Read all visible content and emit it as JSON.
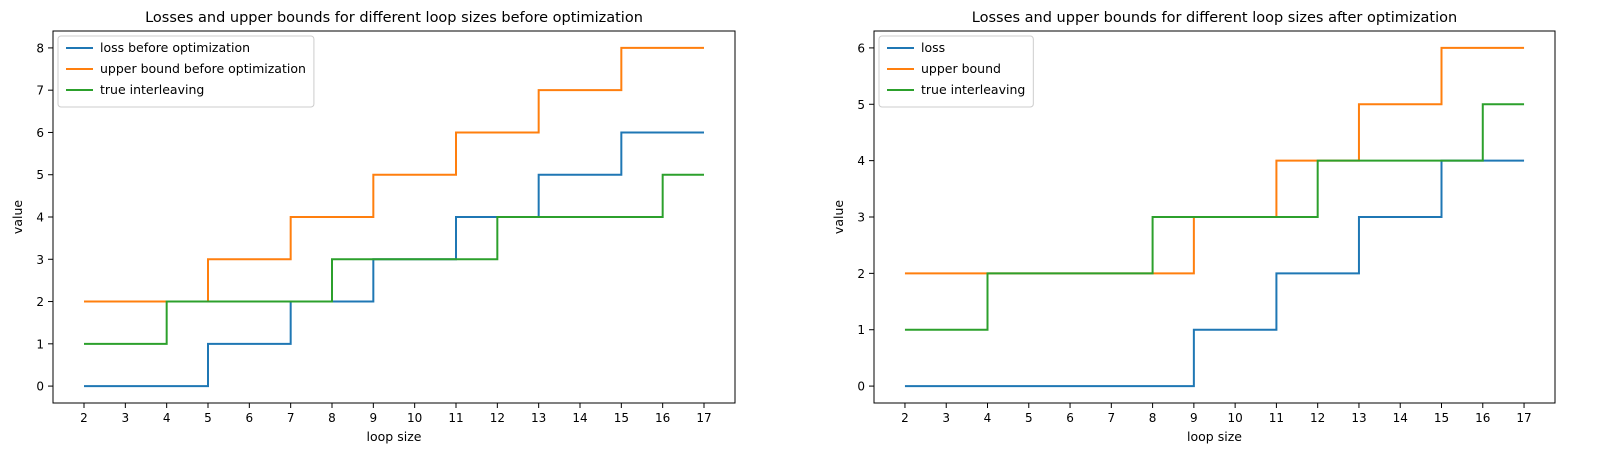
{
  "chart_data": [
    {
      "type": "line",
      "step": "post",
      "title": "Losses and upper bounds for different loop sizes before optimization",
      "xlabel": "loop size",
      "ylabel": "value",
      "xlim": [
        1.25,
        17.75
      ],
      "ylim": [
        -0.4,
        8.4
      ],
      "xticks": [
        2,
        3,
        4,
        5,
        6,
        7,
        8,
        9,
        10,
        11,
        12,
        13,
        14,
        15,
        16,
        17
      ],
      "yticks": [
        0,
        1,
        2,
        3,
        4,
        5,
        6,
        7,
        8
      ],
      "legend": "upper-left",
      "grid": false,
      "x": [
        2,
        3,
        4,
        5,
        6,
        7,
        8,
        9,
        10,
        11,
        12,
        13,
        14,
        15,
        16,
        17
      ],
      "series": [
        {
          "name": "loss before optimization",
          "color": "#1f77b4",
          "values": [
            0,
            0,
            0,
            1,
            1,
            2,
            2,
            3,
            3,
            4,
            4,
            5,
            5,
            6,
            6,
            6
          ]
        },
        {
          "name": "upper bound before optimization",
          "color": "#ff7f0e",
          "values": [
            2,
            2,
            2,
            3,
            3,
            4,
            4,
            5,
            5,
            6,
            6,
            7,
            7,
            8,
            8,
            8
          ]
        },
        {
          "name": "true interleaving",
          "color": "#2ca02c",
          "values": [
            1,
            1,
            2,
            2,
            2,
            2,
            3,
            3,
            3,
            3,
            4,
            4,
            4,
            4,
            5,
            5
          ]
        }
      ]
    },
    {
      "type": "line",
      "step": "post",
      "title": "Losses and upper bounds for different loop sizes after optimization",
      "xlabel": "loop size",
      "ylabel": "value",
      "xlim": [
        1.25,
        17.75
      ],
      "ylim": [
        -0.3,
        6.3
      ],
      "xticks": [
        2,
        3,
        4,
        5,
        6,
        7,
        8,
        9,
        10,
        11,
        12,
        13,
        14,
        15,
        16,
        17
      ],
      "yticks": [
        0,
        1,
        2,
        3,
        4,
        5,
        6
      ],
      "legend": "upper-left",
      "grid": false,
      "x": [
        2,
        3,
        4,
        5,
        6,
        7,
        8,
        9,
        10,
        11,
        12,
        13,
        14,
        15,
        16,
        17
      ],
      "series": [
        {
          "name": "loss",
          "color": "#1f77b4",
          "values": [
            0,
            0,
            0,
            0,
            0,
            0,
            0,
            1,
            1,
            2,
            2,
            3,
            3,
            4,
            4,
            4
          ]
        },
        {
          "name": "upper bound",
          "color": "#ff7f0e",
          "values": [
            2,
            2,
            2,
            2,
            2,
            2,
            2,
            3,
            3,
            4,
            4,
            5,
            5,
            6,
            6,
            6
          ]
        },
        {
          "name": "true interleaving",
          "color": "#2ca02c",
          "values": [
            1,
            1,
            2,
            2,
            2,
            2,
            3,
            3,
            3,
            3,
            4,
            4,
            4,
            4,
            5,
            5
          ]
        }
      ]
    }
  ]
}
